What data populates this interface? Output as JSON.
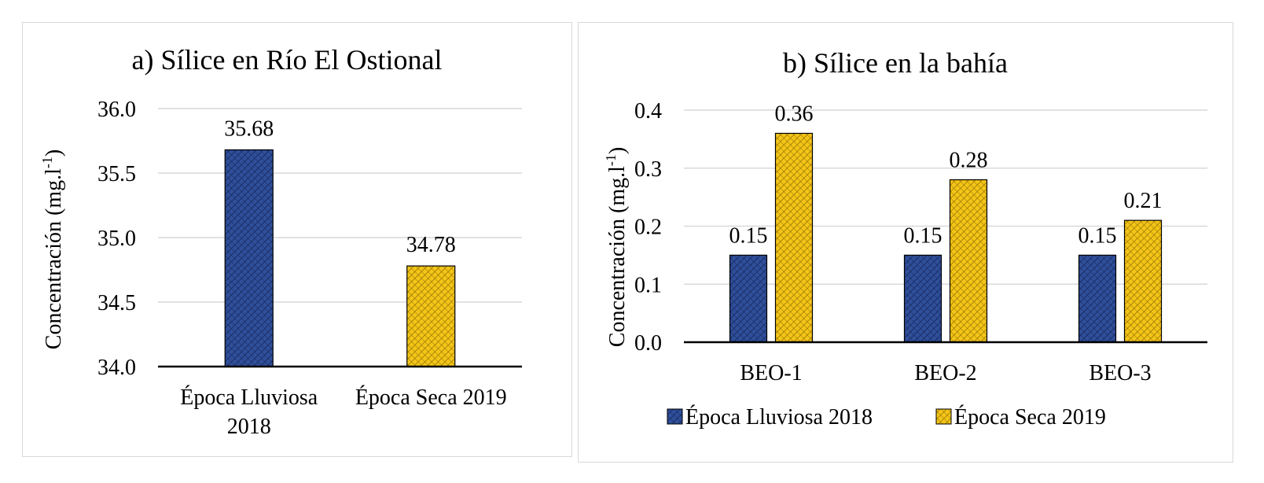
{
  "colors": {
    "series1": "#2f4f9a",
    "series1_pattern": "#16245a",
    "series2": "#f4c518",
    "series2_pattern": "#8a6a00",
    "grid": "#d9d9d9",
    "axis": "#000000"
  },
  "chart_data": [
    {
      "type": "bar",
      "title": "a) Sílice en Río El Ostional",
      "ylabel": "Concentración (mg.l",
      "ylabel_sup": "-1",
      "ylabel_close": ")",
      "ylim": [
        34.0,
        36.0
      ],
      "yticks": [
        "34.0",
        "34.5",
        "35.0",
        "35.5",
        "36.0"
      ],
      "ytick_values": [
        34.0,
        34.5,
        35.0,
        35.5,
        36.0
      ],
      "grid": true,
      "categories": [
        {
          "label_line1": "Época Lluviosa",
          "label_line2": "2018"
        },
        {
          "label_line1": "Época Seca 2019",
          "label_line2": ""
        }
      ],
      "values": [
        35.68,
        34.78
      ],
      "data_labels": [
        "35.68",
        "34.78"
      ],
      "legend": "none"
    },
    {
      "type": "bar",
      "title": "b) Sílice en la bahía",
      "ylabel": "Concentración (mg.l",
      "ylabel_sup": "-1",
      "ylabel_close": ")",
      "ylim": [
        0.0,
        0.4
      ],
      "yticks": [
        "0.0",
        "0.1",
        "0.2",
        "0.3",
        "0.4"
      ],
      "ytick_values": [
        0.0,
        0.1,
        0.2,
        0.3,
        0.4
      ],
      "grid": true,
      "categories": [
        "BEO-1",
        "BEO-2",
        "BEO-3"
      ],
      "series": [
        {
          "name": "Época Lluviosa 2018",
          "values": [
            0.15,
            0.15,
            0.15
          ],
          "data_labels": [
            "0.15",
            "0.15",
            "0.15"
          ]
        },
        {
          "name": "Época Seca 2019",
          "values": [
            0.36,
            0.28,
            0.21
          ],
          "data_labels": [
            "0.36",
            "0.28",
            "0.21"
          ]
        }
      ],
      "legend": "bottom"
    }
  ]
}
